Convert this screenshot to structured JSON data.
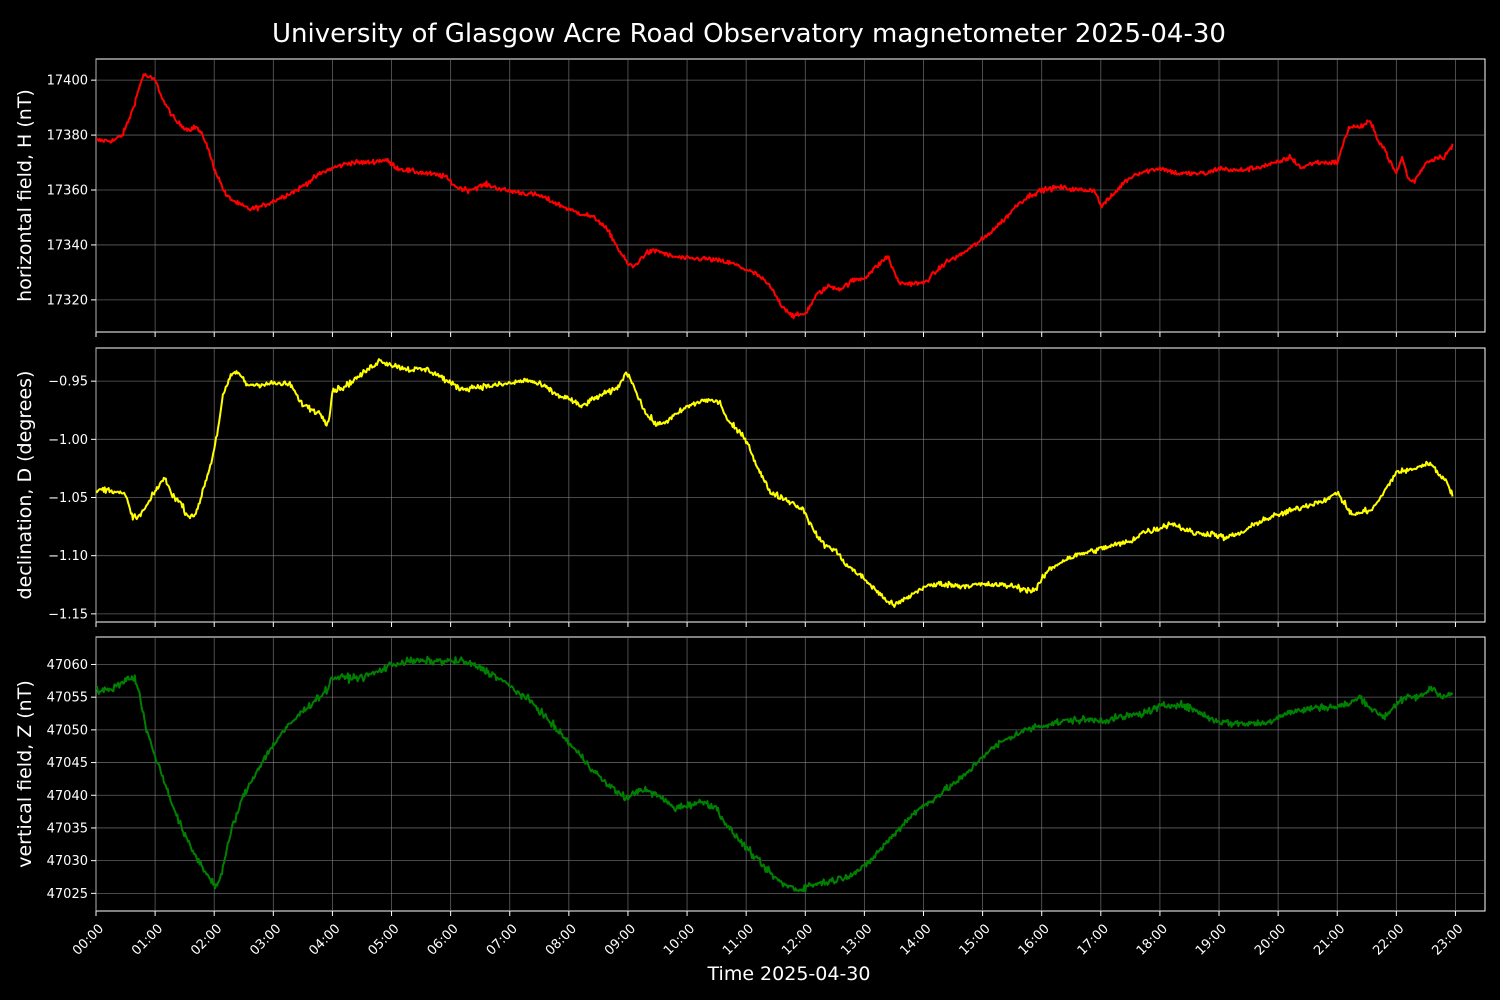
{
  "chart_data": {
    "type": "line",
    "title": "University of Glasgow Acre Road Observatory magnetometer 2025-04-30",
    "xlabel": "Time 2025-04-30",
    "x_unit": "hours",
    "xlim": [
      0,
      23.5
    ],
    "x_ticks": [
      "00:00",
      "01:00",
      "02:00",
      "03:00",
      "04:00",
      "05:00",
      "06:00",
      "07:00",
      "08:00",
      "09:00",
      "10:00",
      "11:00",
      "12:00",
      "13:00",
      "14:00",
      "15:00",
      "16:00",
      "17:00",
      "18:00",
      "19:00",
      "20:00",
      "21:00",
      "22:00",
      "23:00"
    ],
    "grid": true,
    "panels": [
      {
        "name": "H",
        "ylabel": "horizontal field, H (nT)",
        "color": "#ff0000",
        "ylim": [
          17308.3,
          17407.7
        ],
        "y_ticks": [
          17320,
          17340,
          17360,
          17380,
          17400
        ],
        "y_tick_labels": [
          "17320",
          "17340",
          "17360",
          "17380",
          "17400"
        ],
        "noise": 0.9,
        "x": [
          0,
          0.1,
          0.3,
          0.45,
          0.6,
          0.8,
          1.0,
          1.15,
          1.35,
          1.55,
          1.7,
          1.85,
          2.0,
          2.2,
          2.4,
          2.6,
          2.8,
          3.0,
          3.2,
          3.4,
          3.6,
          3.8,
          4.0,
          4.3,
          4.6,
          4.9,
          5.1,
          5.3,
          5.6,
          5.9,
          6.1,
          6.3,
          6.6,
          6.9,
          7.2,
          7.5,
          7.8,
          8.1,
          8.3,
          8.5,
          8.7,
          8.85,
          9.0,
          9.1,
          9.3,
          9.5,
          9.7,
          10.0,
          10.3,
          10.6,
          10.8,
          11.0,
          11.2,
          11.4,
          11.6,
          11.8,
          12.0,
          12.2,
          12.4,
          12.6,
          12.8,
          13.0,
          13.2,
          13.4,
          13.5,
          13.6,
          13.8,
          14.0,
          14.2,
          14.4,
          14.6,
          14.8,
          15.0,
          15.2,
          15.4,
          15.6,
          15.8,
          16.0,
          16.3,
          16.6,
          16.9,
          17.0,
          17.2,
          17.4,
          17.6,
          17.8,
          18.0,
          18.3,
          18.5,
          18.8,
          19.0,
          19.3,
          19.6,
          20.0,
          20.2,
          20.4,
          20.6,
          20.8,
          21.0,
          21.2,
          21.4,
          21.55,
          21.7,
          21.8,
          21.9,
          22.0,
          22.1,
          22.2,
          22.3,
          22.5,
          22.7,
          22.8,
          22.95
        ],
        "y": [
          17378,
          17378,
          17378,
          17380,
          17388,
          17402,
          17400,
          17392,
          17385,
          17382,
          17383,
          17378,
          17368,
          17358,
          17355,
          17353,
          17354,
          17356,
          17358,
          17360,
          17363,
          17366,
          17368,
          17370,
          17370,
          17371,
          17368,
          17367,
          17366,
          17365,
          17361,
          17360,
          17362,
          17360,
          17359,
          17358,
          17355,
          17352,
          17351,
          17349,
          17344,
          17338,
          17333,
          17332,
          17337,
          17338,
          17336,
          17335,
          17335,
          17334,
          17333,
          17331,
          17329,
          17325,
          17318,
          17314,
          17315,
          17322,
          17325,
          17324,
          17327,
          17328,
          17332,
          17336,
          17330,
          17326,
          17326,
          17326,
          17330,
          17334,
          17336,
          17339,
          17342,
          17346,
          17350,
          17355,
          17358,
          17360,
          17361,
          17360,
          17360,
          17354,
          17358,
          17363,
          17366,
          17367,
          17368,
          17366,
          17366,
          17366,
          17368,
          17367,
          17368,
          17370,
          17372,
          17368,
          17370,
          17370,
          17370,
          17383,
          17383,
          17385,
          17378,
          17375,
          17370,
          17366,
          17372,
          17364,
          17363,
          17370,
          17372,
          17372,
          17376
        ]
      },
      {
        "name": "D",
        "ylabel": "declination, D (degrees)",
        "color": "#ffff00",
        "ylim": [
          -1.157,
          -0.9215
        ],
        "y_ticks": [
          -1.15,
          -1.1,
          -1.05,
          -1.0,
          -0.95
        ],
        "y_tick_labels": [
          "−1.15",
          "−1.10",
          "−1.05",
          "−1.00",
          "−0.95"
        ],
        "noise": 0.0025,
        "x": [
          0,
          0.1,
          0.3,
          0.5,
          0.6,
          0.7,
          0.85,
          1.0,
          1.15,
          1.3,
          1.45,
          1.55,
          1.7,
          1.8,
          1.95,
          2.05,
          2.15,
          2.3,
          2.4,
          2.55,
          2.7,
          3.0,
          3.3,
          3.45,
          3.6,
          3.8,
          3.9,
          3.95,
          4.0,
          4.2,
          4.5,
          4.8,
          5.0,
          5.3,
          5.6,
          5.8,
          6.0,
          6.2,
          6.4,
          6.7,
          7.0,
          7.3,
          7.6,
          7.8,
          8.0,
          8.2,
          8.5,
          8.8,
          8.95,
          9.0,
          9.15,
          9.3,
          9.5,
          9.7,
          10.0,
          10.3,
          10.55,
          10.7,
          11.0,
          11.2,
          11.4,
          11.6,
          11.8,
          12.0,
          12.1,
          12.3,
          12.5,
          12.7,
          13.0,
          13.3,
          13.5,
          13.7,
          14.0,
          14.3,
          14.6,
          14.9,
          15.2,
          15.5,
          15.8,
          15.9,
          16.1,
          16.4,
          16.7,
          17.0,
          17.3,
          17.5,
          17.7,
          17.9,
          18.2,
          18.4,
          18.6,
          18.9,
          19.1,
          19.4,
          19.7,
          20.0,
          20.3,
          20.6,
          20.9,
          21.0,
          21.2,
          21.3,
          21.45,
          21.6,
          21.8,
          22.0,
          22.2,
          22.4,
          22.5,
          22.6,
          22.7,
          22.85,
          22.95
        ],
        "y": [
          -1.045,
          -1.043,
          -1.044,
          -1.048,
          -1.065,
          -1.068,
          -1.058,
          -1.045,
          -1.033,
          -1.048,
          -1.056,
          -1.066,
          -1.064,
          -1.045,
          -1.02,
          -0.995,
          -0.962,
          -0.944,
          -0.942,
          -0.953,
          -0.953,
          -0.952,
          -0.953,
          -0.968,
          -0.973,
          -0.978,
          -0.986,
          -0.98,
          -0.958,
          -0.955,
          -0.944,
          -0.932,
          -0.936,
          -0.94,
          -0.94,
          -0.945,
          -0.952,
          -0.957,
          -0.955,
          -0.954,
          -0.952,
          -0.949,
          -0.955,
          -0.962,
          -0.965,
          -0.972,
          -0.963,
          -0.957,
          -0.945,
          -0.943,
          -0.96,
          -0.978,
          -0.988,
          -0.983,
          -0.972,
          -0.966,
          -0.968,
          -0.985,
          -1.0,
          -1.025,
          -1.045,
          -1.05,
          -1.055,
          -1.062,
          -1.075,
          -1.09,
          -1.095,
          -1.108,
          -1.12,
          -1.135,
          -1.143,
          -1.137,
          -1.127,
          -1.124,
          -1.126,
          -1.125,
          -1.125,
          -1.126,
          -1.13,
          -1.129,
          -1.113,
          -1.103,
          -1.098,
          -1.094,
          -1.09,
          -1.088,
          -1.08,
          -1.078,
          -1.072,
          -1.077,
          -1.081,
          -1.081,
          -1.085,
          -1.08,
          -1.07,
          -1.065,
          -1.06,
          -1.055,
          -1.05,
          -1.045,
          -1.062,
          -1.065,
          -1.062,
          -1.06,
          -1.045,
          -1.028,
          -1.027,
          -1.023,
          -1.022,
          -1.02,
          -1.03,
          -1.035,
          -1.048
        ]
      },
      {
        "name": "Z",
        "ylabel": "vertical field, Z (nT)",
        "color": "#008000",
        "ylim": [
          47022.3,
          47064.2
        ],
        "y_ticks": [
          47025,
          47030,
          47035,
          47040,
          47045,
          47050,
          47055,
          47060
        ],
        "y_tick_labels": [
          "47025",
          "47030",
          "47035",
          "47040",
          "47045",
          "47050",
          "47055",
          "47060"
        ],
        "noise": 0.55,
        "x": [
          0,
          0.2,
          0.4,
          0.55,
          0.65,
          0.75,
          0.85,
          1.0,
          1.2,
          1.4,
          1.6,
          1.8,
          1.95,
          2.05,
          2.15,
          2.3,
          2.5,
          2.8,
          3.1,
          3.4,
          3.7,
          3.9,
          4.0,
          4.2,
          4.5,
          4.8,
          5.0,
          5.3,
          5.6,
          5.9,
          6.2,
          6.5,
          6.8,
          7.1,
          7.4,
          7.7,
          8.0,
          8.3,
          8.6,
          8.9,
          9.0,
          9.2,
          9.5,
          9.8,
          10.0,
          10.3,
          10.5,
          10.7,
          11.0,
          11.3,
          11.6,
          11.9,
          12.0,
          12.2,
          12.5,
          12.8,
          13.0,
          13.2,
          13.5,
          13.8,
          14.1,
          14.4,
          14.7,
          15.0,
          15.3,
          15.6,
          15.9,
          16.2,
          16.5,
          16.8,
          17.1,
          17.4,
          17.7,
          18.0,
          18.3,
          18.6,
          18.9,
          19.2,
          19.5,
          19.8,
          20.1,
          20.4,
          20.7,
          21.0,
          21.2,
          21.4,
          21.6,
          21.8,
          22.0,
          22.2,
          22.4,
          22.6,
          22.8,
          22.95
        ],
        "y": [
          47056,
          47056,
          47057,
          47058,
          47058,
          47055,
          47050,
          47046,
          47041,
          47036,
          47032,
          47029,
          47027,
          47026,
          47029,
          47035,
          47040,
          47045,
          47049,
          47052,
          47054.5,
          47056,
          47058,
          47058,
          47058,
          47059,
          47060,
          47060.5,
          47060.5,
          47060.5,
          47060.5,
          47059.5,
          47058,
          47056,
          47054,
          47051,
          47048,
          47045,
          47042,
          47040,
          47039.5,
          47041,
          47040,
          47038,
          47038.5,
          47039,
          47038,
          47035,
          47032,
          47029,
          47026.5,
          47025.5,
          47026,
          47026.5,
          47027,
          47028,
          47029,
          47031,
          47034,
          47037,
          47039,
          47041,
          47043,
          47046,
          47048,
          47049.5,
          47050.5,
          47051,
          47051.5,
          47051.5,
          47051.5,
          47052,
          47052.5,
          47053.5,
          47054,
          47053,
          47051.5,
          47051,
          47051,
          47051,
          47052.5,
          47053,
          47053.5,
          47053.5,
          47054,
          47055,
          47053,
          47052,
          47054,
          47055,
          47055,
          47056.5,
          47055,
          47055.5
        ]
      }
    ]
  }
}
